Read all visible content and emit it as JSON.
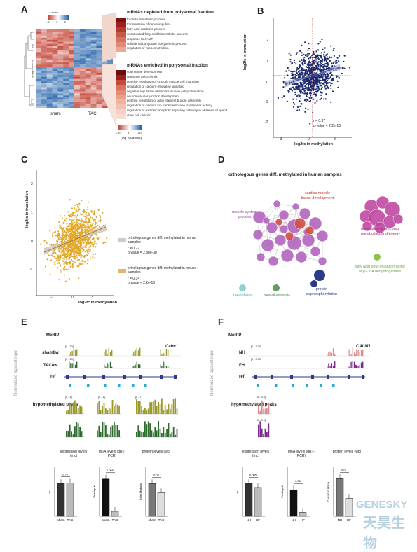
{
  "panels": {
    "A": {
      "label": "A",
      "legend_title": "z-score",
      "legend_ticks": [
        "-2",
        "0",
        "2"
      ],
      "xlabels": [
        "sham",
        "TAC"
      ],
      "depleted_title": "mRNAs depleted from polysomal fraction",
      "depleted_terms": [
        "fructose metabolic process",
        "transmission of nerve impulse",
        "fatty acid catabolic process",
        "unsaturated fatty acid biosynthetic process",
        "response to cAMP",
        "cellular carbohydrate biosynthetic process",
        "regulation of vasoconstriction"
      ],
      "enriched_title": "mRNAs enriched in polysomal fraction",
      "enriched_terms": [
        "sclerotome development",
        "response to ischemia",
        "positive regulation of smooth muscle cell migration",
        "regulation of calcium-mediated signaling",
        "negative regulation of smooth muscle cell proliferation",
        "neuromuscular junction development",
        "positive regulation of actin filament bundle assembly",
        "regulation of calcium ion transmembrane transporter activity",
        "regulation of extrinsic apoptotic signaling pathway in absence of ligand",
        "stem cell division"
      ],
      "scale_ticks": [
        "-20",
        "0",
        "20"
      ],
      "scale_label": "(log p-values)"
    },
    "B": {
      "label": "B",
      "stat_r": "r = 0.37",
      "stat_p": "p-value < 2.2e-16"
    },
    "C": {
      "label": "C",
      "legend1": "orthologous genes diff. methylated in human samples",
      "legend1_stats": [
        "r = 0.27",
        "p-value = 2.88e-08"
      ],
      "legend2": "orthologous genes diff. methylated in mouse samples",
      "legend2_stats": [
        "r = 0.34",
        "p-value < 2.2e-16"
      ]
    },
    "D": {
      "label": "D",
      "title": "orthologous genes diff. methylated in human samples",
      "clusters": [
        "cardiac muscle tissue development",
        "muscle system process",
        "generation of precursor metabolites and energy",
        "fatty acid beta-oxidation using acyl-CoA dehydrogenase",
        "vasodilation",
        "vasculogenesis",
        "protein dephosphorylation"
      ]
    },
    "E": {
      "label": "E",
      "merip": "MeRIP",
      "gene": "Calm1",
      "tracks": [
        "sham8w",
        "TAC8w",
        "ref"
      ],
      "track_ranges": [
        "[0 - 30]",
        "[0 - 30]"
      ],
      "ylab": "Normalized against input",
      "hypo": "hypomethylated peaks",
      "peak_ranges": [
        "[0 - 4]",
        "[0 - 1]",
        "[0 - 7]"
      ],
      "bar_titles": [
        "expression levels (rnc)",
        "m6A levels (qRT-PCR)",
        "protein levels (wb)"
      ],
      "bar_pvals": [
        "0.78",
        "0.005",
        "0.03"
      ],
      "bar_ylabs": [
        "FC",
        "Prot/Input",
        "Calm1/tubulin"
      ],
      "bar_groups": [
        "sham",
        "TAC"
      ]
    },
    "F": {
      "label": "F",
      "merip": "MeRIP",
      "gene": "CALM1",
      "tracks": [
        "NH",
        "FH",
        "ref"
      ],
      "track_ranges": [
        "[0 - 3.00]",
        "[0 - 3.00]"
      ],
      "ylab": "Normalized against input",
      "hypo": "hypomethylated peaks",
      "peak_ranges": [
        "[0 - 3.0]",
        "[0 - 3.0]"
      ],
      "bar_titles": [
        "expression levels (rnc)",
        "m6A levels (qRT-PCR)",
        "protein levels (wb)"
      ],
      "bar_pvals": [
        "0.005",
        "0.05",
        "0.01"
      ],
      "bar_ylabs": [
        "FC",
        "Prot/Input",
        "CALM1/GAPDH"
      ],
      "bar_groups": [
        "NH",
        "HF"
      ]
    }
  },
  "scatter_axes": {
    "B_xlabel": "log2fc in methylation",
    "B_ylabel": "log2fc in translation",
    "B_xticks": [
      "-3",
      "0",
      "3"
    ],
    "B_yticks": [
      "2",
      "1",
      "0",
      "-1",
      "-2"
    ],
    "C_xlabel": "log2fc in methylation",
    "C_ylabel": "log2fc in translation",
    "C_xticks": [
      "-3",
      "0",
      "3"
    ],
    "C_yticks": [
      "2",
      "1",
      "0",
      "-1"
    ]
  },
  "bars": {
    "E": [
      [
        1.0,
        1.02
      ],
      [
        1.9,
        0.25
      ],
      [
        1.0,
        0.72
      ]
    ],
    "F": [
      [
        1.0,
        0.88
      ],
      [
        1.35,
        0.2
      ],
      [
        1.15,
        0.55
      ]
    ]
  },
  "colors": {
    "depleted": "#8b1a1a",
    "enriched": "#e07a5f",
    "sham": "#9a9a2e",
    "tac": "#2e6b2e",
    "nh": "#e08a8a",
    "fh": "#7a2a8a",
    "ref": "#2b3a8a",
    "bar_black": "#111111",
    "bar_grey": "#bdbdbd"
  },
  "watermark": [
    "GENESKY",
    "天昊生物"
  ]
}
